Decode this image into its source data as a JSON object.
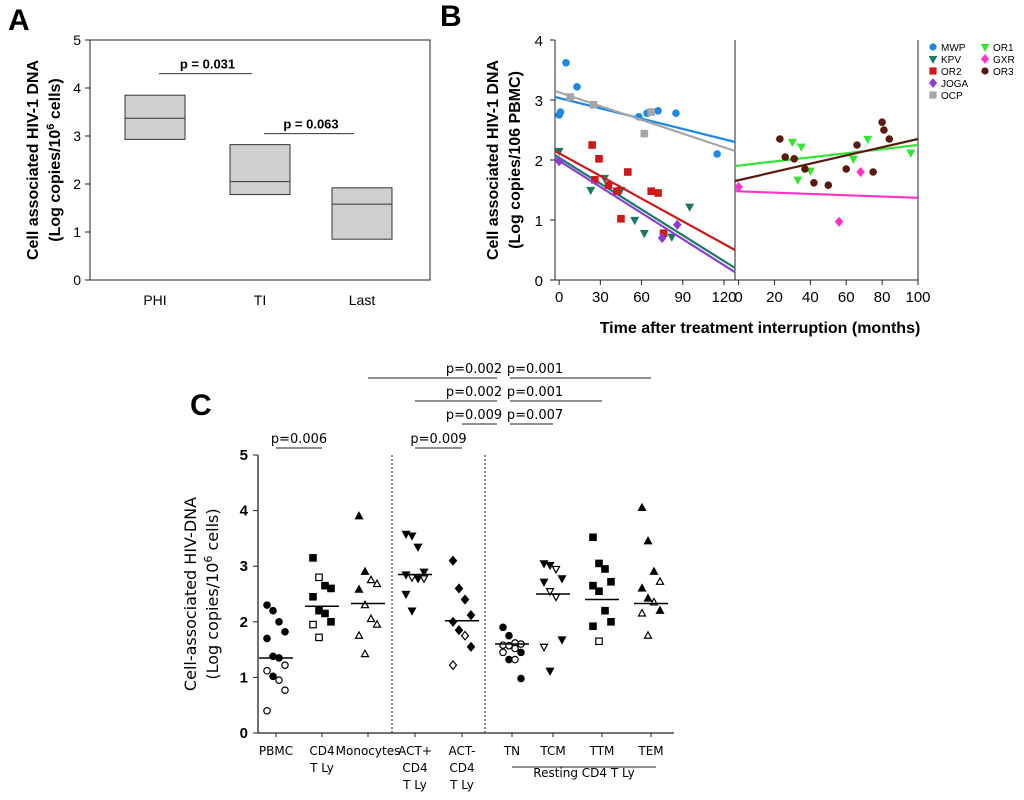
{
  "panels": {
    "a": "A",
    "b": "B",
    "c": "C"
  },
  "chart_data": [
    {
      "panel": "A",
      "type": "box",
      "ylabel_line1": "Cell associated HIV-1 DNA",
      "ylabel_line2": "(Log copies/10",
      "ylabel_sup": "6",
      "ylabel_end": " cells)",
      "ylim": [
        0,
        5
      ],
      "yticks": [
        "0",
        "1",
        "2",
        "3",
        "4",
        "5"
      ],
      "categories": [
        "PHI",
        "TI",
        "Last"
      ],
      "boxes": [
        {
          "category": "PHI",
          "low": 2.93,
          "median": 3.37,
          "high": 3.85
        },
        {
          "category": "TI",
          "low": 1.78,
          "median": 2.05,
          "high": 2.82
        },
        {
          "category": "Last",
          "low": 0.85,
          "median": 1.58,
          "high": 1.92
        }
      ],
      "annotations": [
        {
          "text": "p = 0.031",
          "from": "PHI",
          "to": "TI",
          "y": 4.3
        },
        {
          "text": "p = 0.063",
          "from": "TI",
          "to": "Last",
          "y": 3.05
        }
      ]
    },
    {
      "panel": "B",
      "type": "scatter",
      "ylabel_line1": "Cell associated HIV-1 DNA",
      "ylabel_line2": "(Log copies/106 PBMC)",
      "xlabel": "Time after treatment interruption (months)",
      "ylim": [
        0,
        4
      ],
      "yticks": [
        "0",
        "1",
        "2",
        "3",
        "4"
      ],
      "left_xticks": [
        "0",
        "30",
        "60",
        "90",
        "120"
      ],
      "right_xticks": [
        "0",
        "20",
        "40",
        "60",
        "80",
        "100"
      ],
      "left_xlim": [
        -3,
        128
      ],
      "right_xlim": [
        -2,
        100
      ],
      "legend": [
        {
          "name": "MWP",
          "color": "#1e88e5",
          "marker": "circle"
        },
        {
          "name": "KPV",
          "color": "#1a7a66",
          "marker": "triangle-down"
        },
        {
          "name": "OR2",
          "color": "#cc1a1a",
          "marker": "square"
        },
        {
          "name": "JOGA",
          "color": "#8a3fd1",
          "marker": "diamond"
        },
        {
          "name": "OCP",
          "color": "#a6a6a6",
          "marker": "square"
        },
        {
          "name": "OR1",
          "color": "#33e633",
          "marker": "triangle-down"
        },
        {
          "name": "GXR",
          "color": "#ff33cc",
          "marker": "diamond"
        },
        {
          "name": "OR3",
          "color": "#5a1a0d",
          "marker": "circle"
        }
      ],
      "left_series": [
        {
          "name": "MWP",
          "points": [
            [
              0,
              2.75
            ],
            [
              1,
              2.8
            ],
            [
              5,
              3.62
            ],
            [
              13,
              3.22
            ],
            [
              58,
              2.72
            ],
            [
              64,
              2.78
            ],
            [
              72,
              2.82
            ],
            [
              85,
              2.78
            ],
            [
              115,
              2.1
            ]
          ],
          "fit": [
            3.05,
            2.3
          ]
        },
        {
          "name": "KPV",
          "points": [
            [
              0,
              2.15
            ],
            [
              23,
              1.5
            ],
            [
              33,
              1.7
            ],
            [
              45,
              1.5
            ],
            [
              55,
              1.0
            ],
            [
              62,
              0.78
            ],
            [
              82,
              0.72
            ],
            [
              95,
              1.22
            ]
          ],
          "fit": [
            2.08,
            0.2
          ]
        },
        {
          "name": "OR2",
          "points": [
            [
              24,
              2.25
            ],
            [
              26,
              1.67
            ],
            [
              29,
              2.02
            ],
            [
              36,
              1.58
            ],
            [
              42,
              1.48
            ],
            [
              45,
              1.02
            ],
            [
              50,
              1.8
            ],
            [
              67,
              1.48
            ],
            [
              72,
              1.45
            ],
            [
              76,
              0.78
            ]
          ],
          "fit": [
            2.15,
            0.5
          ]
        },
        {
          "name": "JOGA",
          "points": [
            [
              0,
              1.98
            ],
            [
              75,
              0.7
            ],
            [
              86,
              0.92
            ]
          ],
          "fit": [
            2.03,
            0.13
          ]
        },
        {
          "name": "OCP",
          "points": [
            [
              8,
              3.05
            ],
            [
              25,
              2.92
            ],
            [
              62,
              2.44
            ],
            [
              67,
              2.8
            ]
          ],
          "fit": [
            3.15,
            2.15
          ]
        }
      ],
      "right_series": [
        {
          "name": "OR1",
          "points": [
            [
              30,
              2.3
            ],
            [
              33,
              1.67
            ],
            [
              35,
              2.22
            ],
            [
              40,
              1.82
            ],
            [
              64,
              2.02
            ],
            [
              72,
              2.35
            ],
            [
              96,
              2.12
            ]
          ],
          "fit": [
            1.9,
            2.25
          ]
        },
        {
          "name": "GXR",
          "points": [
            [
              0,
              1.55
            ],
            [
              56,
              0.97
            ],
            [
              68,
              1.8
            ]
          ],
          "fit": [
            1.48,
            1.37
          ]
        },
        {
          "name": "OR3",
          "points": [
            [
              23,
              2.35
            ],
            [
              26,
              2.05
            ],
            [
              31,
              2.02
            ],
            [
              37,
              1.85
            ],
            [
              42,
              1.62
            ],
            [
              50,
              1.58
            ],
            [
              60,
              1.85
            ],
            [
              66,
              2.25
            ],
            [
              75,
              1.8
            ],
            [
              80,
              2.63
            ],
            [
              81,
              2.5
            ],
            [
              84,
              2.35
            ]
          ],
          "fit": [
            1.65,
            2.35
          ]
        }
      ]
    },
    {
      "panel": "C",
      "type": "scatter",
      "ylabel_line1": "Cell-associated HIV-DNA",
      "ylabel_line2": "(Log copies/10",
      "ylabel_sup": "6",
      "ylabel_end": " cells)",
      "ylim": [
        0,
        5
      ],
      "yticks": [
        "0",
        "1",
        "2",
        "3",
        "4",
        "5"
      ],
      "categories": [
        {
          "lines": [
            "PBMC"
          ]
        },
        {
          "lines": [
            "CD4",
            "T Ly"
          ]
        },
        {
          "lines": [
            "Monocytes"
          ],
          "small": true
        },
        {
          "lines": [
            "ACT+",
            "CD4",
            "T  Ly"
          ]
        },
        {
          "lines": [
            "ACT-",
            "CD4",
            "T  Ly"
          ]
        },
        {
          "lines": [
            "TN"
          ]
        },
        {
          "lines": [
            "TCM"
          ]
        },
        {
          "lines": [
            "TTM"
          ]
        },
        {
          "lines": [
            "TEM"
          ]
        }
      ],
      "group_label": "Resting CD4 T Ly",
      "series": [
        {
          "category": "PBMC",
          "marker": "circle",
          "median": 1.35,
          "filled": [
            2.3,
            2.2,
            2.0,
            1.82,
            1.7,
            1.38,
            1.35,
            1.02
          ],
          "open": [
            1.22,
            1.12,
            0.95,
            0.77,
            0.4
          ]
        },
        {
          "category": "CD4 T Ly",
          "marker": "square",
          "median": 2.28,
          "filled": [
            3.15,
            2.65,
            2.6,
            2.45,
            2.2,
            2.15,
            2.0
          ],
          "open": [
            2.8,
            1.95,
            1.72
          ]
        },
        {
          "category": "Monocytes",
          "marker": "triangle-up",
          "median": 2.33,
          "filled": [
            3.9,
            2.9,
            2.58
          ],
          "open": [
            2.75,
            2.68,
            2.3,
            2.05,
            1.95,
            1.75,
            1.42
          ]
        },
        {
          "category": "ACT+ CD4 T Ly",
          "marker": "triangle-down",
          "median": 2.85,
          "filled": [
            3.58,
            3.55,
            3.35,
            2.9,
            2.85,
            2.78,
            2.5,
            2.2
          ],
          "open": [
            2.8,
            2.78
          ]
        },
        {
          "category": "ACT- CD4 T Ly",
          "marker": "diamond",
          "median": 2.02,
          "filled": [
            3.1,
            2.6,
            2.4,
            2.12,
            2.0,
            1.85,
            1.55
          ],
          "open": [
            1.75,
            1.22
          ]
        },
        {
          "category": "TN",
          "marker": "circle",
          "median": 1.6,
          "filled": [
            1.9,
            1.75,
            1.45,
            1.32,
            0.98
          ],
          "open": [
            1.62,
            1.6,
            1.58,
            1.57,
            1.52,
            1.45,
            1.32
          ]
        },
        {
          "category": "TCM",
          "marker": "triangle-down",
          "median": 2.5,
          "filled": [
            3.05,
            3.02,
            2.78,
            2.72,
            1.68,
            1.12
          ],
          "open": [
            2.95,
            2.55,
            2.45,
            1.55
          ]
        },
        {
          "category": "TTM",
          "marker": "square",
          "median": 2.4,
          "filled": [
            3.52,
            3.05,
            2.95,
            2.72,
            2.65,
            2.55,
            2.2,
            2.0,
            1.92
          ],
          "open": [
            1.65
          ]
        },
        {
          "category": "TEM",
          "marker": "triangle-up",
          "median": 2.33,
          "filled": [
            4.05,
            3.45,
            2.9,
            2.6,
            2.42,
            2.2
          ],
          "open": [
            2.72,
            2.35,
            2.15,
            1.75
          ]
        }
      ],
      "comparisons": [
        {
          "label": "p=0.006",
          "from": "PBMC",
          "to": "CD4 T Ly"
        },
        {
          "label": "p=0.009",
          "from": "ACT+ CD4 T Ly",
          "to": "ACT- CD4 T Ly"
        },
        {
          "label": "p=0.002",
          "from": "ACT- CD4 T Ly",
          "to": "TN",
          "tier": 3
        },
        {
          "label": "p=0.002",
          "from": "ACT- CD4 T Ly",
          "to": "TN",
          "tier": 2
        },
        {
          "label": "p=0.009",
          "from": "ACT- CD4 T Ly",
          "to": "TN",
          "tier": 1
        },
        {
          "label": "p=0.001",
          "from": "TN",
          "to": "TEM",
          "tier": 3
        },
        {
          "label": "p=0.001",
          "from": "TN",
          "to": "TTM",
          "tier": 2
        },
        {
          "label": "p=0.007",
          "from": "TN",
          "to": "TCM",
          "tier": 1
        }
      ]
    }
  ]
}
